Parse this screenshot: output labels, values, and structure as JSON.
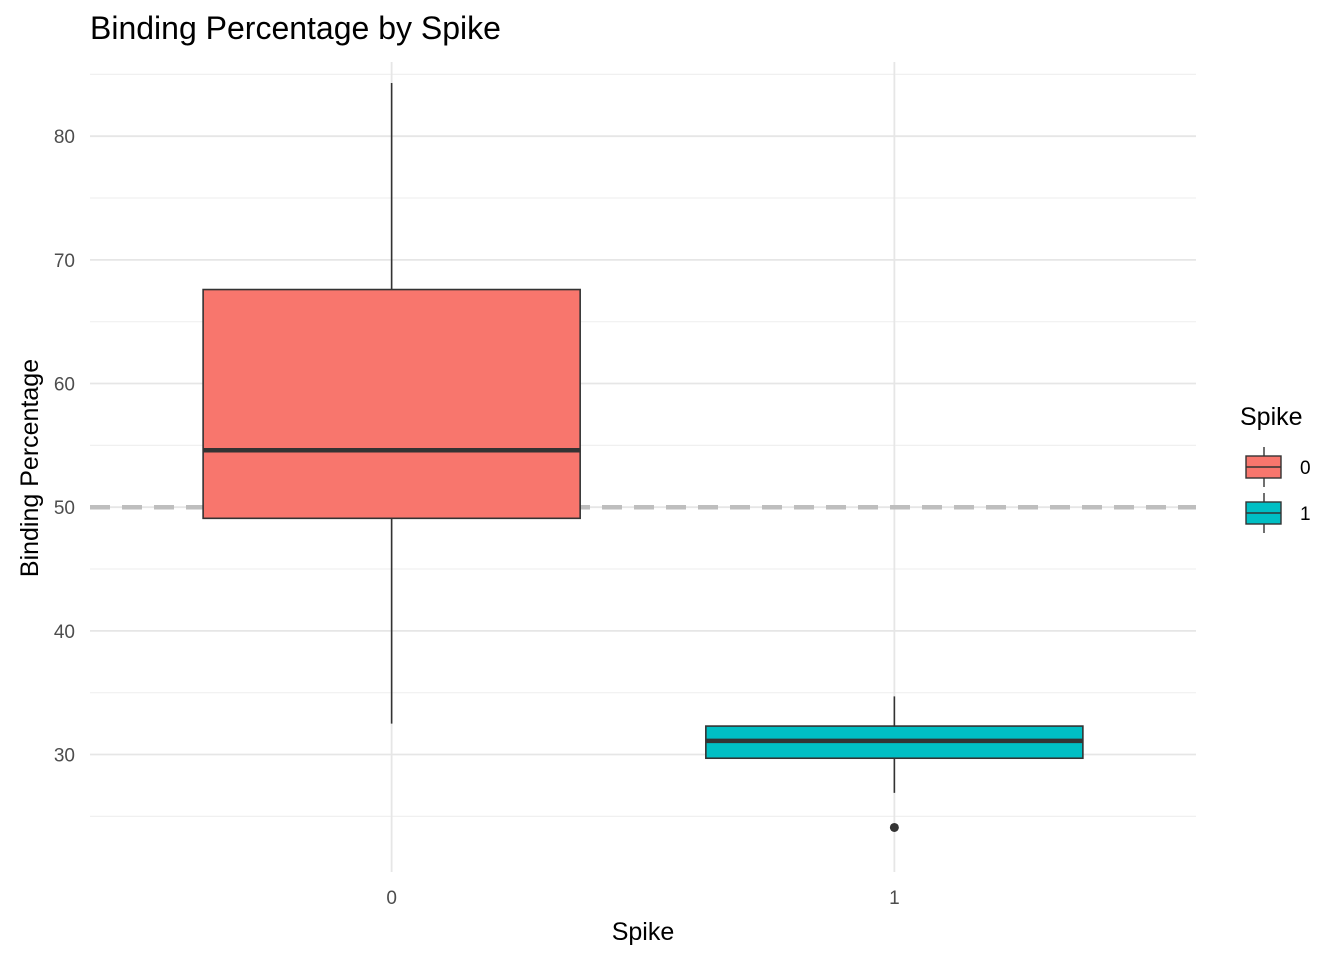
{
  "chart_data": {
    "type": "box",
    "title": "Binding Percentage by Spike",
    "xlabel": "Spike",
    "ylabel": "Binding Percentage",
    "categories": [
      "0",
      "1"
    ],
    "ylim": [
      20.5,
      86
    ],
    "yticks": [
      30,
      40,
      50,
      60,
      70,
      80
    ],
    "grid": true,
    "reference_line": {
      "y": 50,
      "style": "dashed",
      "color": "#BEBEBE"
    },
    "boxes": [
      {
        "category": "0",
        "whisker_low": 32.5,
        "q1": 49.1,
        "median": 54.6,
        "q3": 67.6,
        "whisker_high": 84.3,
        "outliers": [],
        "fill": "#F8766D"
      },
      {
        "category": "1",
        "whisker_low": 26.9,
        "q1": 29.7,
        "median": 31.1,
        "q3": 32.3,
        "whisker_high": 34.7,
        "outliers": [
          24.1
        ],
        "fill": "#00BFC4"
      }
    ],
    "legend": {
      "title": "Spike",
      "position": "right",
      "items": [
        {
          "label": "0",
          "color": "#F8766D"
        },
        {
          "label": "1",
          "color": "#00BFC4"
        }
      ]
    }
  }
}
